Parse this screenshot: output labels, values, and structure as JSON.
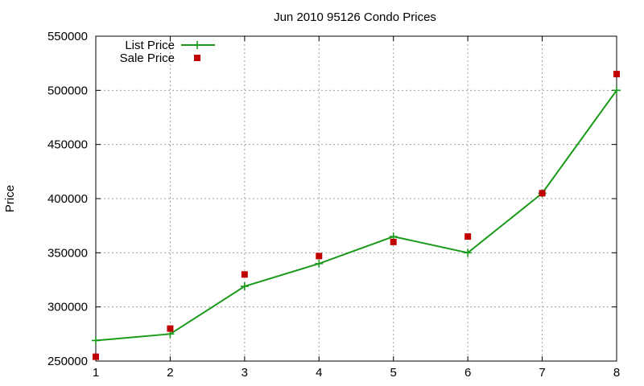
{
  "chart_data": {
    "type": "line",
    "title": "Jun 2010 95126 Condo Prices",
    "xlabel": "",
    "ylabel": "Price",
    "x": [
      1,
      2,
      3,
      4,
      5,
      6,
      7,
      8
    ],
    "xlim": [
      1,
      8
    ],
    "ylim": [
      250000,
      550000
    ],
    "xticks": [
      "1",
      "2",
      "3",
      "4",
      "5",
      "6",
      "7",
      "8"
    ],
    "yticks": [
      "250000",
      "300000",
      "350000",
      "400000",
      "450000",
      "500000",
      "550000"
    ],
    "grid": true,
    "legend_position": "top-left",
    "series": [
      {
        "name": "List Price",
        "type": "line",
        "marker": "plus",
        "color": "#1a9a1a",
        "values": [
          269000,
          275000,
          319000,
          340000,
          365000,
          350000,
          405000,
          500000
        ]
      },
      {
        "name": "Sale Price",
        "type": "scatter",
        "marker": "square",
        "color": "#c00000",
        "values": [
          254000,
          280000,
          330000,
          347000,
          360000,
          365000,
          405000,
          515000
        ]
      }
    ]
  }
}
